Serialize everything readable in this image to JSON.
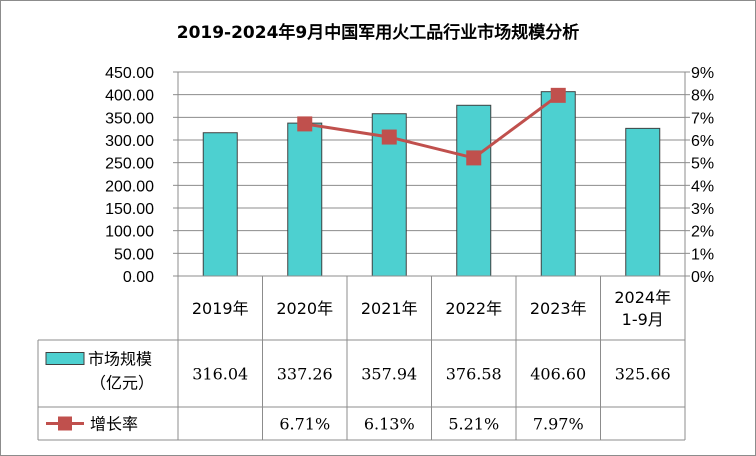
{
  "chart_data": {
    "type": "bar",
    "title": "2019-2024年9月中国军用火工品行业市场规模分析",
    "categories": [
      "2019年",
      "2020年",
      "2021年",
      "2022年",
      "2023年",
      "2024年1-9月"
    ],
    "category_lines": [
      [
        "2019年"
      ],
      [
        "2020年"
      ],
      [
        "2021年"
      ],
      [
        "2022年"
      ],
      [
        "2023年"
      ],
      [
        "2024年",
        "1-9月"
      ]
    ],
    "ylim": [
      0,
      450
    ],
    "y2lim": [
      0,
      0.09
    ],
    "yticks": [
      "0.00",
      "50.00",
      "100.00",
      "150.00",
      "200.00",
      "250.00",
      "300.00",
      "350.00",
      "400.00",
      "450.00"
    ],
    "y2ticks": [
      "0%",
      "1%",
      "2%",
      "3%",
      "4%",
      "5%",
      "6%",
      "7%",
      "8%",
      "9%"
    ],
    "series": [
      {
        "name": "市场规模（亿元）",
        "name_lines": [
          "市场规模",
          "（亿元）"
        ],
        "type": "bar",
        "axis": "left",
        "color": "#4dd0d0",
        "values": [
          316.04,
          337.26,
          357.94,
          376.58,
          406.6,
          325.66
        ],
        "labels": [
          "316.04",
          "337.26",
          "357.94",
          "376.58",
          "406.60",
          "325.66"
        ]
      },
      {
        "name": "增长率",
        "name_lines": [
          "增长率"
        ],
        "type": "line",
        "axis": "right",
        "color": "#c0504d",
        "values": [
          null,
          0.0671,
          0.0613,
          0.0521,
          0.0797,
          null
        ],
        "labels": [
          "",
          "6.71%",
          "6.13%",
          "5.21%",
          "7.97%",
          ""
        ]
      }
    ],
    "grid": true,
    "legend": "data-table"
  }
}
